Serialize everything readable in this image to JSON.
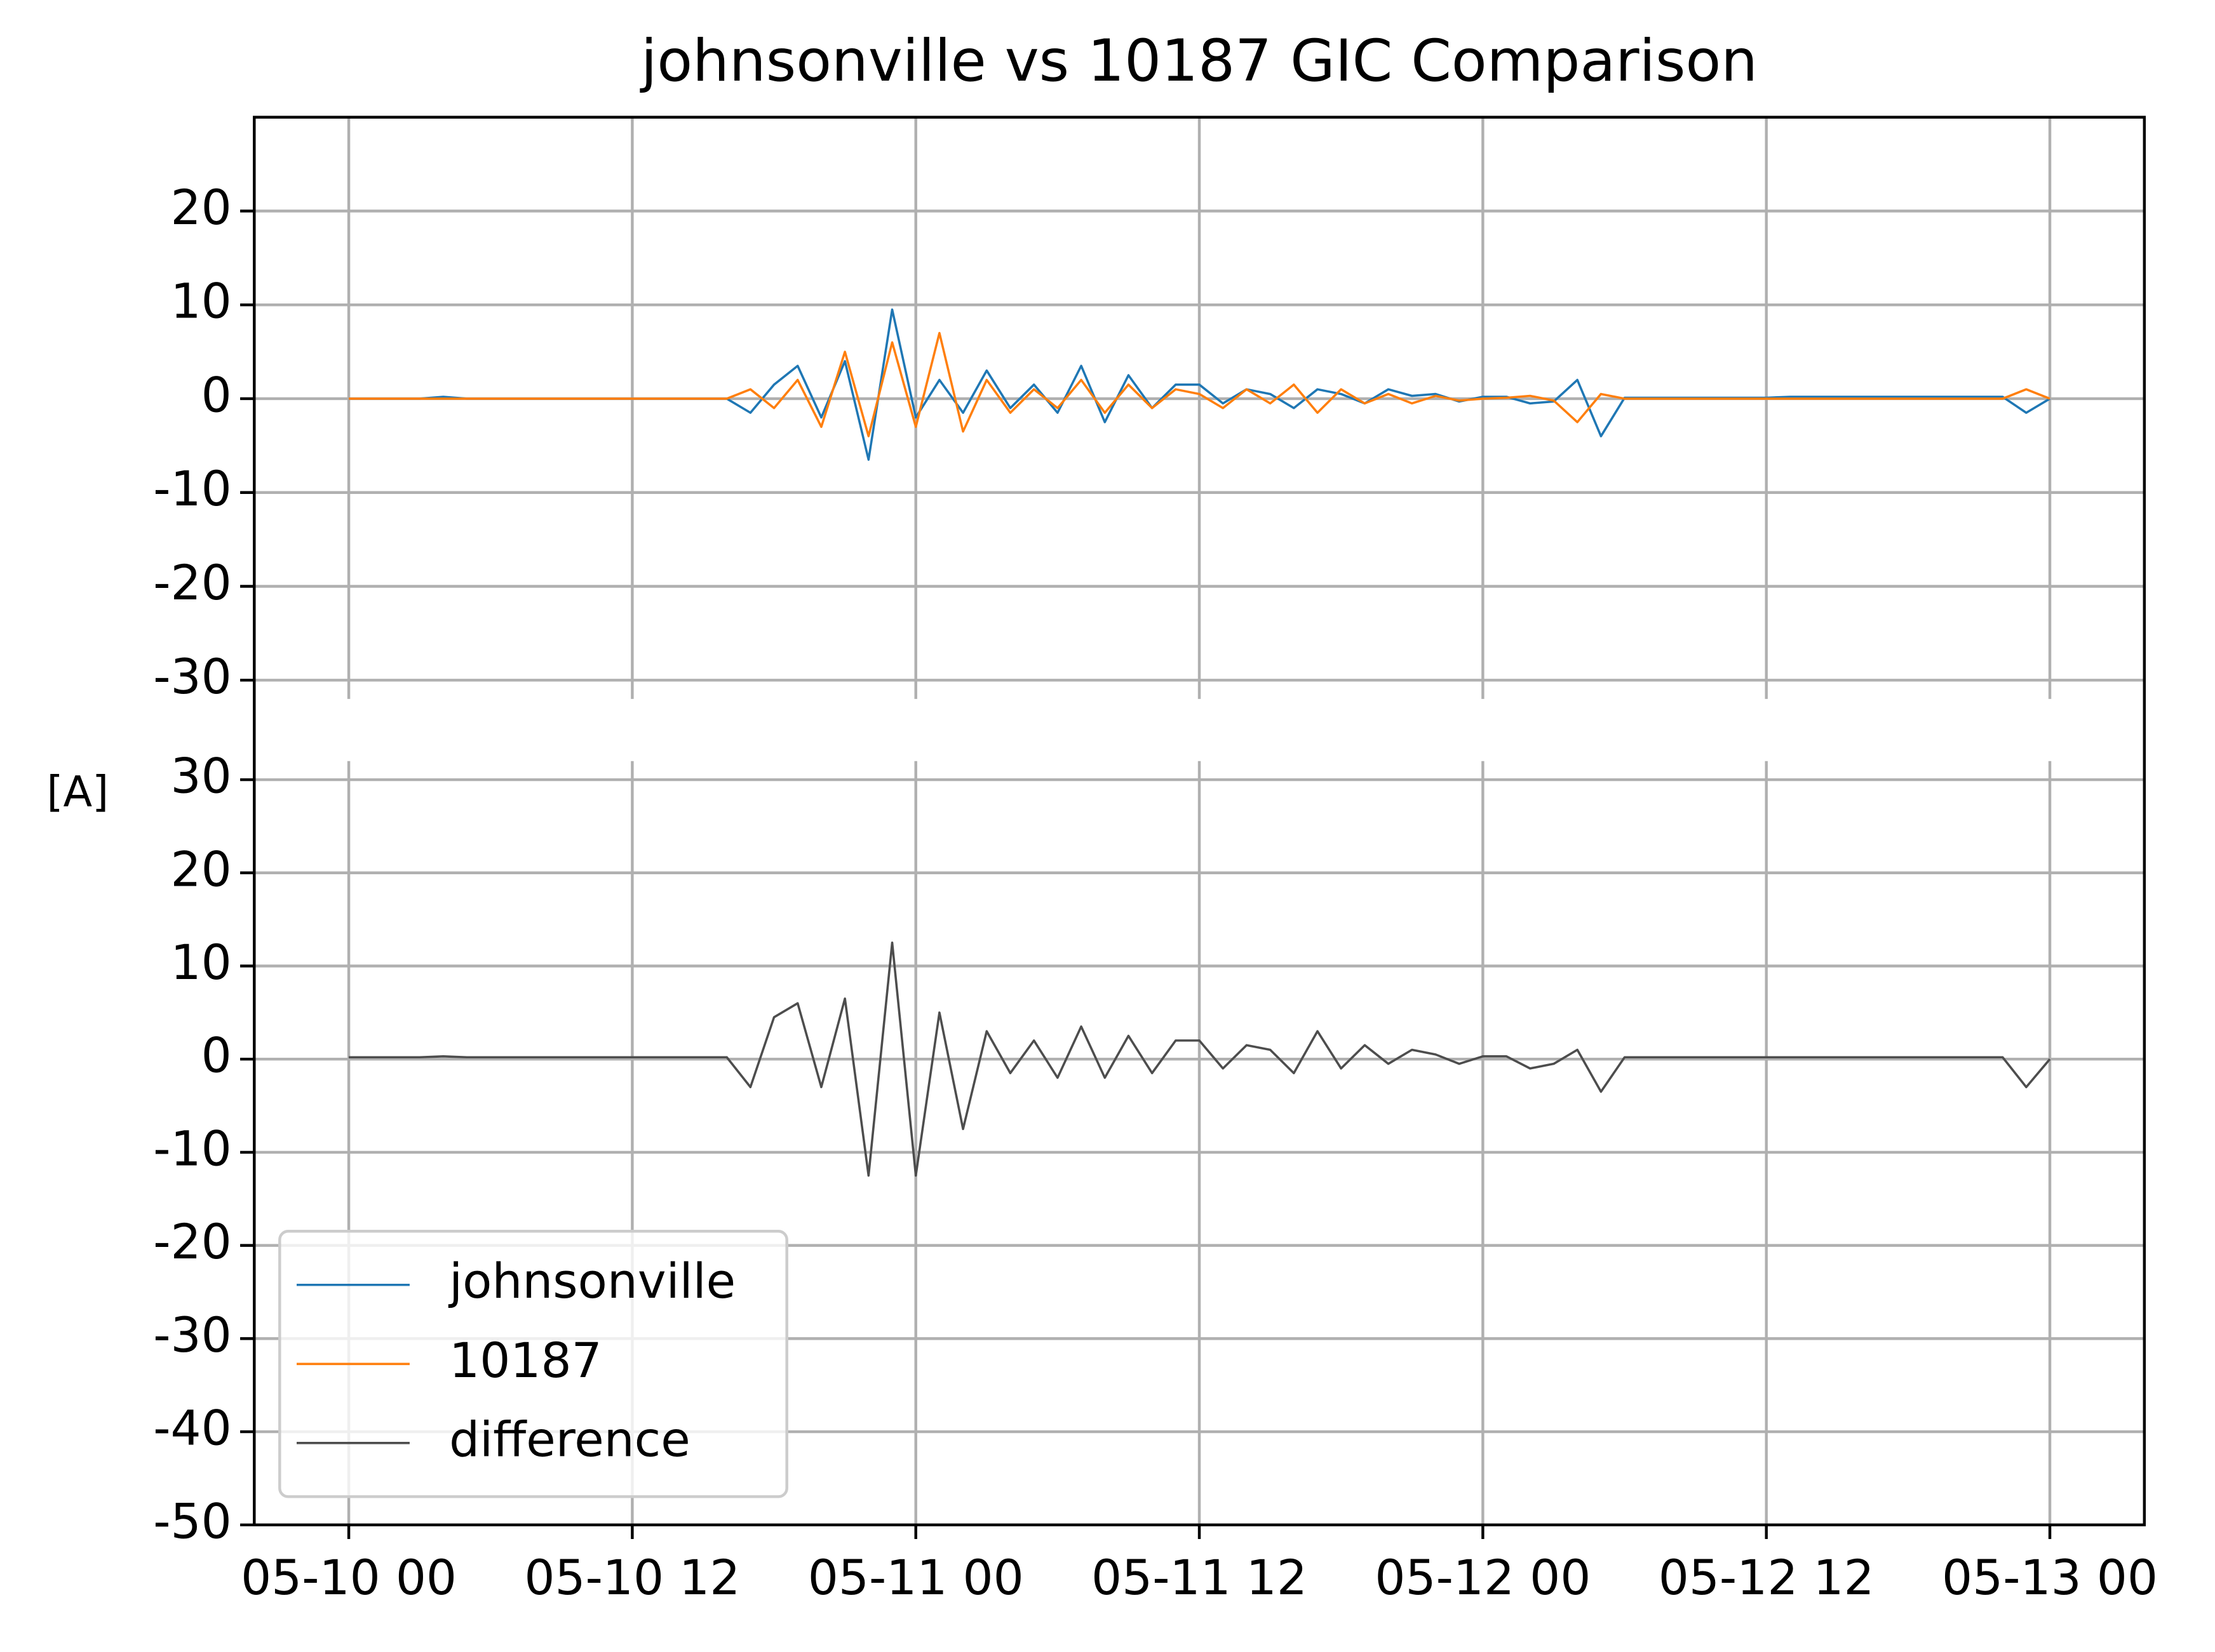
{
  "chart_data": [
    {
      "type": "line",
      "title": "johnsonville vs 10187 GIC Comparison",
      "x": [
        "05-10 00",
        "05-10 01",
        "05-10 02",
        "05-10 03",
        "05-10 04",
        "05-10 05",
        "05-10 06",
        "05-10 07",
        "05-10 08",
        "05-10 09",
        "05-10 10",
        "05-10 11",
        "05-10 12",
        "05-10 13",
        "05-10 14",
        "05-10 15",
        "05-10 16",
        "05-10 17",
        "05-10 18",
        "05-10 19",
        "05-10 20",
        "05-10 21",
        "05-10 22",
        "05-10 23",
        "05-11 00",
        "05-11 01",
        "05-11 02",
        "05-11 03",
        "05-11 04",
        "05-11 05",
        "05-11 06",
        "05-11 07",
        "05-11 08",
        "05-11 09",
        "05-11 10",
        "05-11 11",
        "05-11 12",
        "05-11 13",
        "05-11 14",
        "05-11 15",
        "05-11 16",
        "05-11 17",
        "05-11 18",
        "05-11 19",
        "05-11 20",
        "05-11 21",
        "05-11 22",
        "05-11 23",
        "05-12 00",
        "05-12 01",
        "05-12 02",
        "05-12 03",
        "05-12 04",
        "05-12 05",
        "05-12 06",
        "05-12 07",
        "05-12 08",
        "05-12 09",
        "05-12 10",
        "05-12 11",
        "05-12 12",
        "05-12 13",
        "05-12 14",
        "05-12 15",
        "05-12 16",
        "05-12 17",
        "05-12 18",
        "05-12 19",
        "05-12 20",
        "05-12 21",
        "05-12 22",
        "05-12 23",
        "05-13 00"
      ],
      "xlim": [
        "05-09 20",
        "05-13 04"
      ],
      "ylim": [
        -32,
        30
      ],
      "yticks": [
        -30,
        -20,
        -10,
        0,
        10,
        20
      ],
      "grid": true,
      "series": [
        {
          "name": "johnsonville",
          "color": "#1f77b4",
          "values": [
            0,
            0,
            0,
            0,
            0.2,
            0,
            0,
            0,
            0,
            0,
            0,
            0,
            0,
            0,
            0,
            0,
            0,
            -1.5,
            1.5,
            3.5,
            -2,
            4,
            -6.5,
            9.5,
            -2,
            2,
            -1.5,
            3,
            -1,
            1.5,
            -1.5,
            3.5,
            -2.5,
            2.5,
            -1,
            1.5,
            1.5,
            -0.5,
            1,
            0.5,
            -1,
            1,
            0.5,
            -0.5,
            1,
            0.3,
            0.5,
            -0.3,
            0.2,
            0.2,
            -0.5,
            -0.3,
            2,
            -4,
            0.1,
            0.1,
            0.1,
            0.1,
            0.1,
            0.1,
            0.1,
            0.2,
            0.2,
            0.2,
            0.2,
            0.2,
            0.2,
            0.2,
            0.2,
            0.2,
            0.2,
            -1.5,
            0
          ]
        },
        {
          "name": "10187",
          "color": "#ff7f0e",
          "values": [
            0,
            0,
            0,
            0,
            0,
            0,
            0,
            0,
            0,
            0,
            0,
            0,
            0,
            0,
            0,
            0,
            0,
            1,
            -1,
            2,
            -3,
            5,
            -4,
            6,
            -3,
            7,
            -3.5,
            2,
            -1.5,
            1,
            -1,
            2,
            -1.5,
            1.5,
            -1,
            1,
            0.5,
            -1,
            1,
            -0.5,
            1.5,
            -1.5,
            1,
            -0.5,
            0.5,
            -0.5,
            0.3,
            -0.2,
            0,
            0.1,
            0.3,
            -0.2,
            -2.5,
            0.5,
            0,
            0,
            0,
            0,
            0,
            0,
            0,
            0,
            0,
            0,
            0,
            0,
            0,
            0,
            0,
            0,
            0,
            1,
            0
          ]
        }
      ]
    },
    {
      "type": "line",
      "ylabel": "[A]",
      "x": [
        "05-10 00",
        "05-10 01",
        "05-10 02",
        "05-10 03",
        "05-10 04",
        "05-10 05",
        "05-10 06",
        "05-10 07",
        "05-10 08",
        "05-10 09",
        "05-10 10",
        "05-10 11",
        "05-10 12",
        "05-10 13",
        "05-10 14",
        "05-10 15",
        "05-10 16",
        "05-10 17",
        "05-10 18",
        "05-10 19",
        "05-10 20",
        "05-10 21",
        "05-10 22",
        "05-10 23",
        "05-11 00",
        "05-11 01",
        "05-11 02",
        "05-11 03",
        "05-11 04",
        "05-11 05",
        "05-11 06",
        "05-11 07",
        "05-11 08",
        "05-11 09",
        "05-11 10",
        "05-11 11",
        "05-11 12",
        "05-11 13",
        "05-11 14",
        "05-11 15",
        "05-11 16",
        "05-11 17",
        "05-11 18",
        "05-11 19",
        "05-11 20",
        "05-11 21",
        "05-11 22",
        "05-11 23",
        "05-12 00",
        "05-12 01",
        "05-12 02",
        "05-12 03",
        "05-12 04",
        "05-12 05",
        "05-12 06",
        "05-12 07",
        "05-12 08",
        "05-12 09",
        "05-12 10",
        "05-12 11",
        "05-12 12",
        "05-12 13",
        "05-12 14",
        "05-12 15",
        "05-12 16",
        "05-12 17",
        "05-12 18",
        "05-12 19",
        "05-12 20",
        "05-12 21",
        "05-12 22",
        "05-12 23",
        "05-13 00"
      ],
      "xlim": [
        "05-09 20",
        "05-13 04"
      ],
      "xticks": [
        "05-10 00",
        "05-10 12",
        "05-11 00",
        "05-11 12",
        "05-12 00",
        "05-12 12",
        "05-13 00"
      ],
      "ylim": [
        -50,
        32
      ],
      "yticks": [
        -50,
        -40,
        -30,
        -20,
        -10,
        0,
        10,
        20,
        30
      ],
      "grid": true,
      "legend": "lower left",
      "series": [
        {
          "name": "difference",
          "color": "#4d4d4d",
          "values": [
            0.2,
            0.2,
            0.2,
            0.2,
            0.3,
            0.2,
            0.2,
            0.2,
            0.2,
            0.2,
            0.2,
            0.2,
            0.2,
            0.2,
            0.2,
            0.2,
            0.2,
            -3,
            4.5,
            6,
            -3,
            6.5,
            -12.5,
            12.5,
            -12.5,
            5,
            -7.5,
            3,
            -1.5,
            2,
            -2,
            3.5,
            -2,
            2.5,
            -1.5,
            2,
            2,
            -1,
            1.5,
            1,
            -1.5,
            3,
            -1,
            1.5,
            -0.5,
            1,
            0.5,
            -0.5,
            0.3,
            0.3,
            -1,
            -0.5,
            1,
            -3.5,
            0.2,
            0.2,
            0.2,
            0.2,
            0.2,
            0.2,
            0.2,
            0.2,
            0.2,
            0.2,
            0.2,
            0.2,
            0.2,
            0.2,
            0.2,
            0.2,
            0.2,
            -3,
            0
          ]
        }
      ]
    }
  ]
}
